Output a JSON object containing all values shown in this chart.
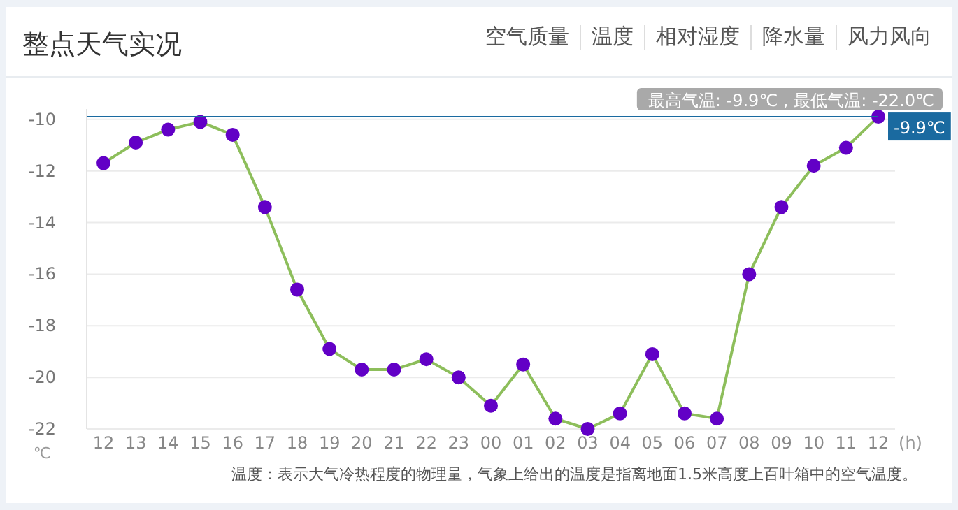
{
  "chart_data": {
    "type": "line",
    "title": "整点天气实况",
    "xlabel": "(h)",
    "ylabel": "℃",
    "categories": [
      "12",
      "13",
      "14",
      "15",
      "16",
      "17",
      "18",
      "19",
      "20",
      "21",
      "22",
      "23",
      "00",
      "01",
      "02",
      "03",
      "04",
      "05",
      "06",
      "07",
      "08",
      "09",
      "10",
      "11",
      "12"
    ],
    "series": [
      {
        "color": "#8dbe5b",
        "colors": [
          "#6200c6",
          "#6200c6",
          "#6200c6",
          "#6200c6",
          "#6200c6",
          "#6200c6",
          "#6200c6",
          "#6200c6",
          "#6200c6",
          "#6200c6",
          "#6200c6",
          "#6200c6",
          "#6200c6",
          "#6200c6",
          "#6200c6",
          "#6200c6",
          "#6200c6",
          "#6200c6",
          "#6200c6",
          "#6200c6",
          "#6200c6",
          "#6200c6",
          "#6200c6",
          "#6200c6",
          "#6200c6"
        ],
        "values": [
          -11.7,
          -10.9,
          -10.4,
          -10.1,
          -10.6,
          -13.4,
          -16.6,
          -18.9,
          -19.7,
          -19.7,
          -19.3,
          -20.0,
          -21.1,
          -19.5,
          -21.6,
          -22.0,
          -21.4,
          -19.1,
          -21.4,
          -21.6,
          -16.0,
          -13.4,
          -11.8,
          -11.1,
          -9.9
        ]
      }
    ],
    "ylim": [
      -22,
      -9.6
    ],
    "yticks": [
      -22,
      -20,
      -18,
      -16,
      -14,
      -12,
      -10
    ],
    "grid": "y",
    "marker": "circle",
    "line_style": "solid",
    "ref_lines": [
      {
        "axis": "y",
        "value": -9.9,
        "label": "-9.9℃",
        "color": "#1a6aa0"
      }
    ],
    "annotations": [
      "空气质量",
      "温度",
      "相对湿度",
      "降水量",
      "风力风向",
      "最高气温: -9.9℃ , 最低气温: -22.0℃",
      "温度：表示大气冷热程度的物理量，气象上给出的温度是指离地面1.5米高度上百叶箱中的空气温度。"
    ]
  }
}
